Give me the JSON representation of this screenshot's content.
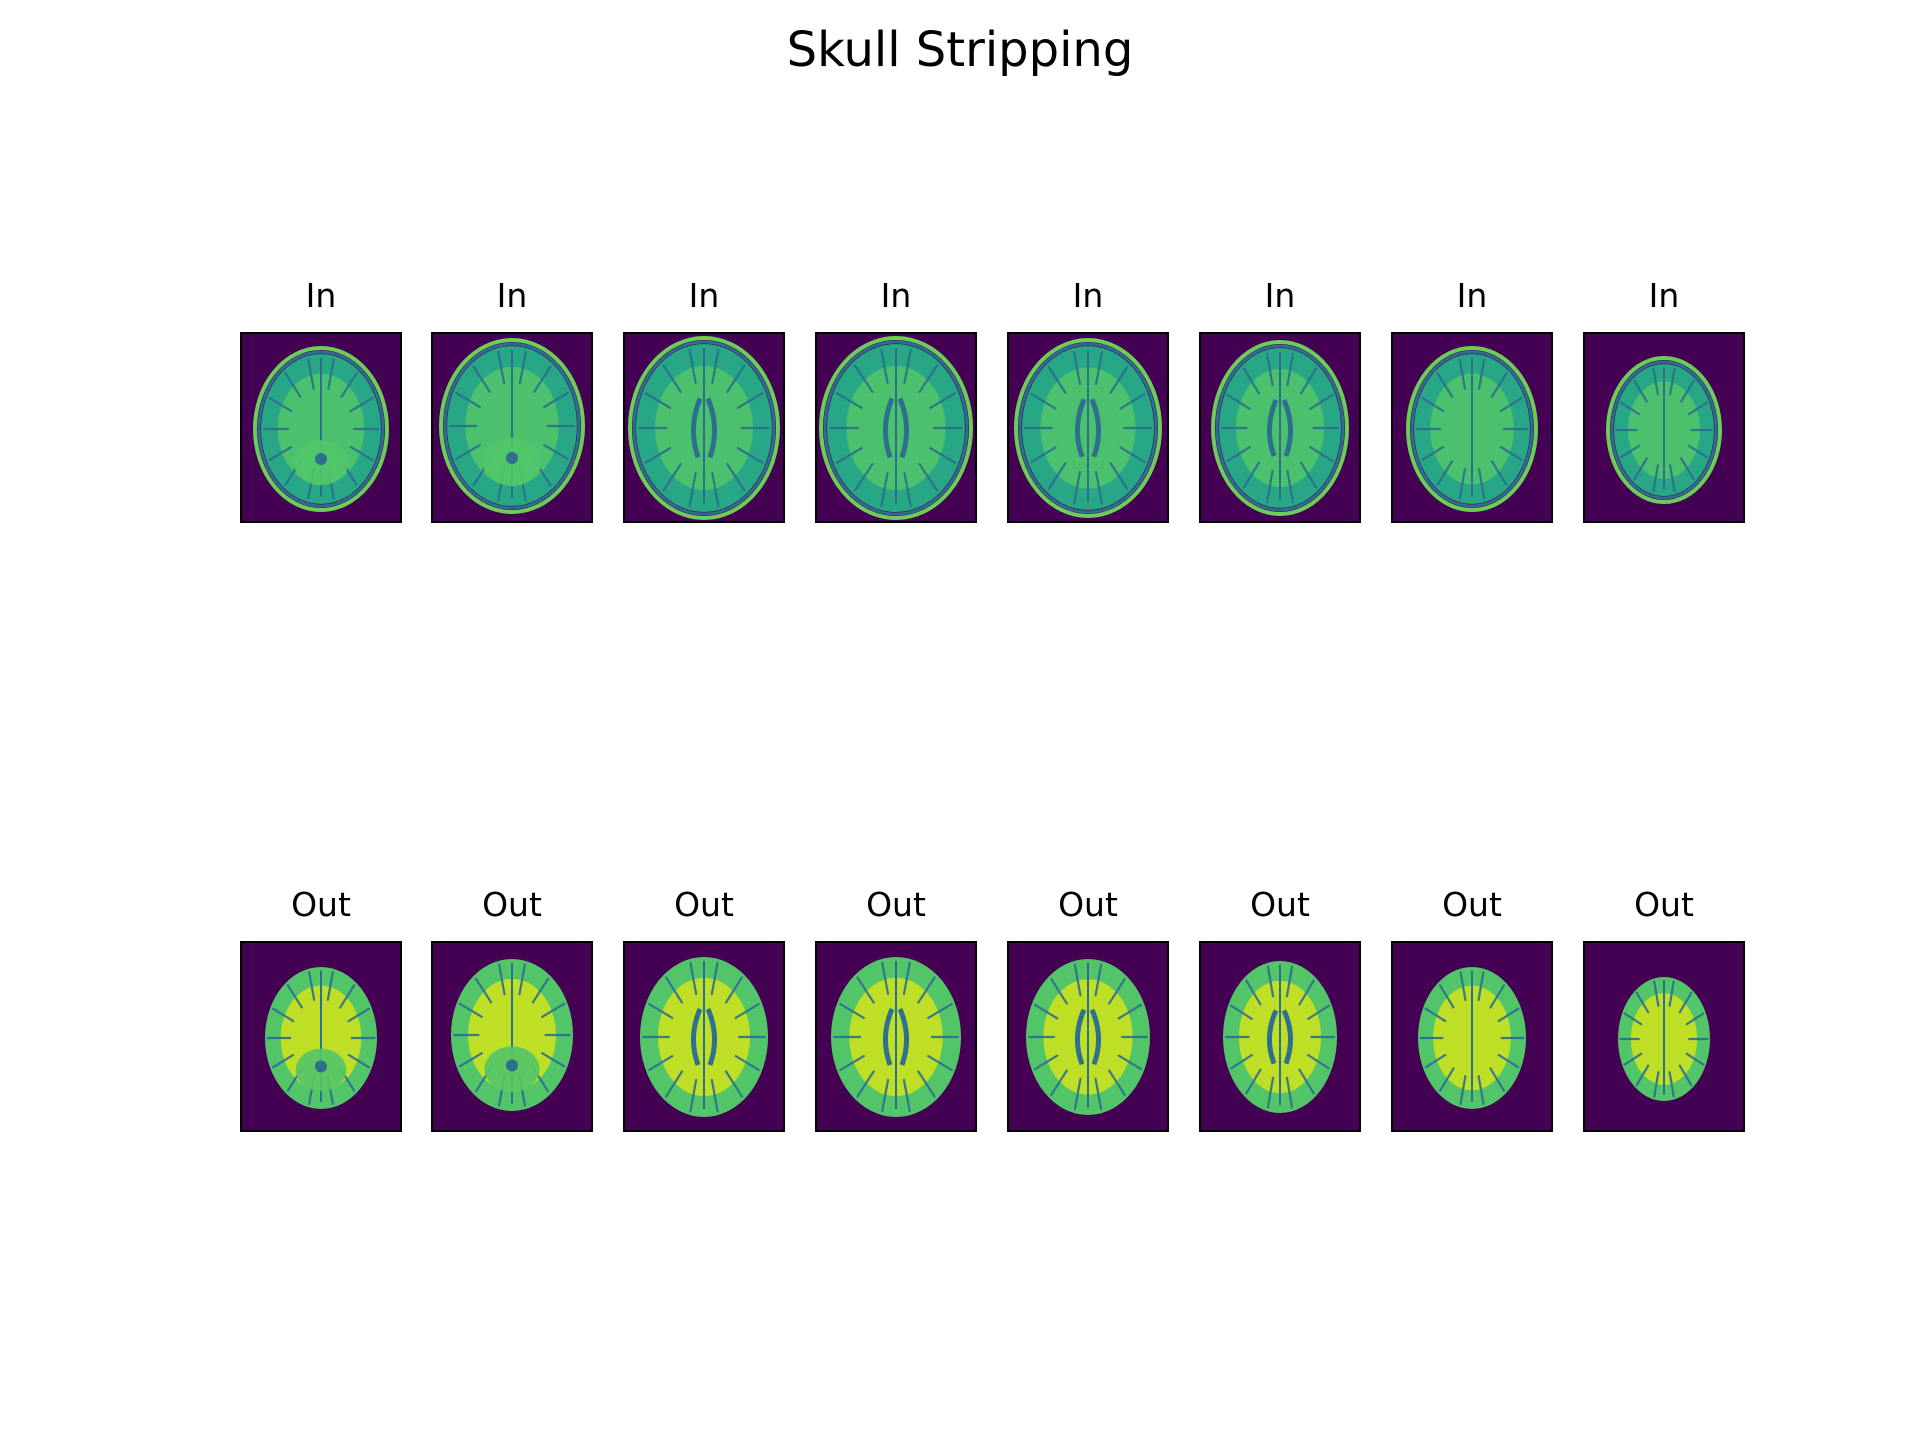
{
  "title": "Skull Stripping",
  "colormap": {
    "background": "#440154",
    "dark": "#2c6f8e",
    "mid": "#27a785",
    "bright": "#52c569",
    "brightest": "#d2e21b",
    "skull": "#6cce59"
  },
  "rows": [
    {
      "key": "in",
      "panels": [
        {
          "label": "In",
          "skull_visible": true
        },
        {
          "label": "In",
          "skull_visible": true
        },
        {
          "label": "In",
          "skull_visible": true
        },
        {
          "label": "In",
          "skull_visible": true
        },
        {
          "label": "In",
          "skull_visible": true
        },
        {
          "label": "In",
          "skull_visible": true
        },
        {
          "label": "In",
          "skull_visible": true
        },
        {
          "label": "In",
          "skull_visible": true
        }
      ]
    },
    {
      "key": "out",
      "panels": [
        {
          "label": "Out",
          "skull_visible": false
        },
        {
          "label": "Out",
          "skull_visible": false
        },
        {
          "label": "Out",
          "skull_visible": false
        },
        {
          "label": "Out",
          "skull_visible": false
        },
        {
          "label": "Out",
          "skull_visible": false
        },
        {
          "label": "Out",
          "skull_visible": false
        },
        {
          "label": "Out",
          "skull_visible": false
        },
        {
          "label": "Out",
          "skull_visible": false
        }
      ]
    }
  ]
}
